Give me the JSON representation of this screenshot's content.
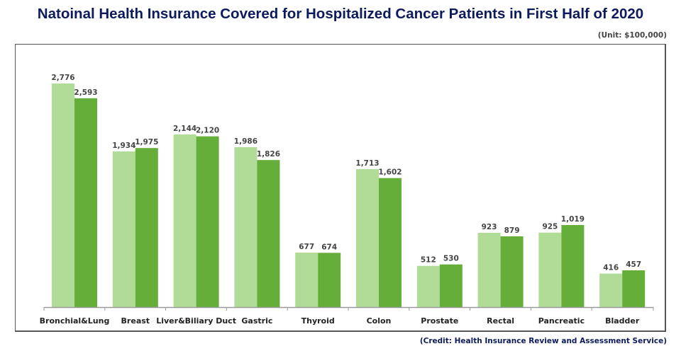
{
  "title": "Natoinal Health Insurance Covered for Hospitalized Cancer Patients in First Half of 2020",
  "unit_label": "(Unit: $100,000)",
  "credit": "(Credit: Health Insurance Review and Assessment Service)",
  "colors": {
    "series_1": "#b1dc97",
    "series_2": "#64ae39",
    "title": "#0d1b5c"
  },
  "chart_data": {
    "type": "bar",
    "title": "Natoinal Health Insurance Covered for Hospitalized Cancer Patients in First Half of 2020",
    "xlabel": "",
    "ylabel": "",
    "unit": "$100,000",
    "categories": [
      "Bronchial&Lung",
      "Breast",
      "Liver&Biliary Duct",
      "Gastric",
      "Thyroid",
      "Colon",
      "Prostate",
      "Rectal",
      "Pancreatic",
      "Bladder"
    ],
    "series": [
      {
        "name": "Series 1",
        "values": [
          2776,
          1934,
          2144,
          1986,
          677,
          1713,
          512,
          923,
          925,
          416
        ],
        "labels": [
          "2,776",
          "1,934",
          "2,144",
          "1,986",
          "677",
          "1,713",
          "512",
          "923",
          "925",
          "416"
        ]
      },
      {
        "name": "Series 2",
        "values": [
          2593,
          1975,
          2120,
          1826,
          674,
          1602,
          530,
          879,
          1019,
          457
        ],
        "labels": [
          "2,593",
          "1,975",
          "2,120",
          "1,826",
          "674",
          "1,602",
          "530",
          "879",
          "1,019",
          "457"
        ]
      }
    ],
    "ylim": [
      0,
      2900
    ],
    "grid": false,
    "legend": "none"
  }
}
